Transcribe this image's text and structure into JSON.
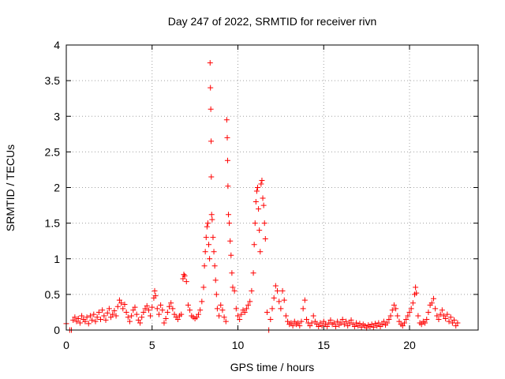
{
  "chart_data": {
    "type": "scatter",
    "title": "Day 247 of 2022, SRMTID for receiver rivn",
    "xlabel": "GPS time / hours",
    "ylabel": "SRMTID / TECUs",
    "xlim": [
      0,
      24
    ],
    "ylim": [
      0,
      4
    ],
    "xticks": [
      0,
      5,
      10,
      15,
      20
    ],
    "xtick_labels": [
      "0",
      "5",
      "10",
      "15",
      "20"
    ],
    "yticks": [
      0,
      0.5,
      1,
      1.5,
      2,
      2.5,
      3,
      3.5,
      4
    ],
    "ytick_labels": [
      "0",
      "0.5",
      "1",
      "1.5",
      "2",
      "2.5",
      "3",
      "3.5",
      "4"
    ],
    "grid": true,
    "marker": "+",
    "color": "#ff0000",
    "series": [
      {
        "name": "SRMTID",
        "points": [
          [
            0.0,
            0.09
          ],
          [
            0.2,
            0.0
          ],
          [
            0.3,
            0.0
          ],
          [
            0.4,
            0.14
          ],
          [
            0.5,
            0.18
          ],
          [
            0.6,
            0.12
          ],
          [
            0.7,
            0.16
          ],
          [
            0.8,
            0.1
          ],
          [
            0.9,
            0.2
          ],
          [
            1.0,
            0.15
          ],
          [
            1.1,
            0.12
          ],
          [
            1.2,
            0.18
          ],
          [
            1.3,
            0.09
          ],
          [
            1.4,
            0.2
          ],
          [
            1.5,
            0.14
          ],
          [
            1.6,
            0.22
          ],
          [
            1.7,
            0.12
          ],
          [
            1.8,
            0.18
          ],
          [
            1.9,
            0.25
          ],
          [
            2.0,
            0.15
          ],
          [
            2.1,
            0.28
          ],
          [
            2.2,
            0.2
          ],
          [
            2.3,
            0.14
          ],
          [
            2.4,
            0.24
          ],
          [
            2.5,
            0.3
          ],
          [
            2.6,
            0.18
          ],
          [
            2.7,
            0.22
          ],
          [
            2.8,
            0.27
          ],
          [
            2.9,
            0.2
          ],
          [
            3.0,
            0.33
          ],
          [
            3.1,
            0.42
          ],
          [
            3.2,
            0.38
          ],
          [
            3.3,
            0.3
          ],
          [
            3.4,
            0.36
          ],
          [
            3.5,
            0.25
          ],
          [
            3.6,
            0.18
          ],
          [
            3.7,
            0.12
          ],
          [
            3.8,
            0.2
          ],
          [
            3.9,
            0.28
          ],
          [
            4.0,
            0.32
          ],
          [
            4.1,
            0.22
          ],
          [
            4.2,
            0.14
          ],
          [
            4.3,
            0.1
          ],
          [
            4.4,
            0.18
          ],
          [
            4.5,
            0.25
          ],
          [
            4.6,
            0.3
          ],
          [
            4.7,
            0.34
          ],
          [
            4.8,
            0.28
          ],
          [
            4.9,
            0.2
          ],
          [
            5.0,
            0.32
          ],
          [
            5.1,
            0.45
          ],
          [
            5.15,
            0.55
          ],
          [
            5.2,
            0.48
          ],
          [
            5.3,
            0.3
          ],
          [
            5.4,
            0.22
          ],
          [
            5.5,
            0.35
          ],
          [
            5.6,
            0.28
          ],
          [
            5.7,
            0.1
          ],
          [
            5.8,
            0.16
          ],
          [
            5.9,
            0.25
          ],
          [
            6.0,
            0.33
          ],
          [
            6.1,
            0.38
          ],
          [
            6.2,
            0.3
          ],
          [
            6.3,
            0.22
          ],
          [
            6.4,
            0.18
          ],
          [
            6.5,
            0.15
          ],
          [
            6.6,
            0.2
          ],
          [
            6.7,
            0.22
          ],
          [
            6.8,
            0.72
          ],
          [
            6.85,
            0.78
          ],
          [
            6.9,
            0.76
          ],
          [
            7.0,
            0.68
          ],
          [
            7.1,
            0.35
          ],
          [
            7.2,
            0.28
          ],
          [
            7.3,
            0.2
          ],
          [
            7.4,
            0.18
          ],
          [
            7.5,
            0.16
          ],
          [
            7.6,
            0.18
          ],
          [
            7.7,
            0.22
          ],
          [
            7.8,
            0.28
          ],
          [
            7.9,
            0.4
          ],
          [
            8.0,
            0.6
          ],
          [
            8.05,
            0.9
          ],
          [
            8.1,
            1.1
          ],
          [
            8.15,
            1.3
          ],
          [
            8.2,
            1.45
          ],
          [
            8.25,
            1.5
          ],
          [
            8.3,
            1.2
          ],
          [
            8.35,
            1.0
          ],
          [
            8.38,
            3.75
          ],
          [
            8.4,
            3.4
          ],
          [
            8.42,
            3.1
          ],
          [
            8.44,
            2.65
          ],
          [
            8.45,
            2.15
          ],
          [
            8.47,
            1.62
          ],
          [
            8.5,
            1.55
          ],
          [
            8.55,
            1.3
          ],
          [
            8.6,
            1.1
          ],
          [
            8.65,
            0.9
          ],
          [
            8.7,
            0.7
          ],
          [
            8.75,
            0.5
          ],
          [
            8.8,
            0.3
          ],
          [
            8.9,
            0.2
          ],
          [
            9.0,
            0.35
          ],
          [
            9.1,
            0.28
          ],
          [
            9.2,
            0.18
          ],
          [
            9.3,
            0.12
          ],
          [
            9.35,
            2.95
          ],
          [
            9.38,
            2.7
          ],
          [
            9.4,
            2.38
          ],
          [
            9.42,
            2.02
          ],
          [
            9.45,
            1.62
          ],
          [
            9.5,
            1.5
          ],
          [
            9.55,
            1.25
          ],
          [
            9.6,
            1.05
          ],
          [
            9.65,
            0.8
          ],
          [
            9.7,
            0.6
          ],
          [
            9.8,
            0.55
          ],
          [
            9.9,
            0.3
          ],
          [
            10.0,
            0.2
          ],
          [
            10.1,
            0.15
          ],
          [
            10.2,
            0.22
          ],
          [
            10.3,
            0.28
          ],
          [
            10.4,
            0.25
          ],
          [
            10.5,
            0.3
          ],
          [
            10.6,
            0.35
          ],
          [
            10.7,
            0.4
          ],
          [
            10.8,
            0.55
          ],
          [
            10.9,
            0.8
          ],
          [
            10.95,
            1.2
          ],
          [
            11.0,
            1.5
          ],
          [
            11.05,
            1.8
          ],
          [
            11.1,
            1.95
          ],
          [
            11.15,
            2.0
          ],
          [
            11.2,
            1.7
          ],
          [
            11.25,
            1.4
          ],
          [
            11.3,
            1.1
          ],
          [
            11.35,
            2.05
          ],
          [
            11.4,
            2.1
          ],
          [
            11.45,
            1.85
          ],
          [
            11.5,
            1.75
          ],
          [
            11.55,
            1.5
          ],
          [
            11.6,
            1.28
          ],
          [
            11.7,
            0.25
          ],
          [
            11.8,
            0.0
          ],
          [
            11.9,
            0.15
          ],
          [
            12.0,
            0.3
          ],
          [
            12.1,
            0.45
          ],
          [
            12.2,
            0.62
          ],
          [
            12.3,
            0.55
          ],
          [
            12.4,
            0.4
          ],
          [
            12.5,
            0.3
          ],
          [
            12.6,
            0.55
          ],
          [
            12.7,
            0.42
          ],
          [
            12.8,
            0.2
          ],
          [
            12.9,
            0.12
          ],
          [
            13.0,
            0.08
          ],
          [
            13.1,
            0.1
          ],
          [
            13.2,
            0.06
          ],
          [
            13.3,
            0.12
          ],
          [
            13.4,
            0.08
          ],
          [
            13.5,
            0.1
          ],
          [
            13.6,
            0.06
          ],
          [
            13.7,
            0.12
          ],
          [
            13.8,
            0.3
          ],
          [
            13.9,
            0.42
          ],
          [
            14.0,
            0.15
          ],
          [
            14.1,
            0.1
          ],
          [
            14.2,
            0.06
          ],
          [
            14.3,
            0.1
          ],
          [
            14.4,
            0.2
          ],
          [
            14.5,
            0.12
          ],
          [
            14.6,
            0.08
          ],
          [
            14.7,
            0.05
          ],
          [
            14.8,
            0.1
          ],
          [
            14.9,
            0.06
          ],
          [
            15.0,
            0.12
          ],
          [
            15.1,
            0.08
          ],
          [
            15.2,
            0.05
          ],
          [
            15.3,
            0.1
          ],
          [
            15.4,
            0.14
          ],
          [
            15.5,
            0.08
          ],
          [
            15.6,
            0.1
          ],
          [
            15.7,
            0.05
          ],
          [
            15.8,
            0.12
          ],
          [
            15.9,
            0.07
          ],
          [
            16.0,
            0.1
          ],
          [
            16.1,
            0.15
          ],
          [
            16.2,
            0.08
          ],
          [
            16.3,
            0.12
          ],
          [
            16.4,
            0.06
          ],
          [
            16.5,
            0.1
          ],
          [
            16.6,
            0.14
          ],
          [
            16.7,
            0.08
          ],
          [
            16.8,
            0.05
          ],
          [
            16.9,
            0.1
          ],
          [
            17.0,
            0.06
          ],
          [
            17.1,
            0.09
          ],
          [
            17.2,
            0.04
          ],
          [
            17.3,
            0.08
          ],
          [
            17.4,
            0.06
          ],
          [
            17.5,
            0.03
          ],
          [
            17.6,
            0.07
          ],
          [
            17.7,
            0.05
          ],
          [
            17.8,
            0.08
          ],
          [
            17.9,
            0.04
          ],
          [
            18.0,
            0.09
          ],
          [
            18.1,
            0.06
          ],
          [
            18.2,
            0.1
          ],
          [
            18.3,
            0.05
          ],
          [
            18.4,
            0.08
          ],
          [
            18.5,
            0.12
          ],
          [
            18.6,
            0.07
          ],
          [
            18.7,
            0.1
          ],
          [
            18.8,
            0.15
          ],
          [
            18.9,
            0.2
          ],
          [
            19.0,
            0.28
          ],
          [
            19.1,
            0.35
          ],
          [
            19.2,
            0.3
          ],
          [
            19.3,
            0.2
          ],
          [
            19.4,
            0.12
          ],
          [
            19.5,
            0.08
          ],
          [
            19.6,
            0.06
          ],
          [
            19.7,
            0.1
          ],
          [
            19.8,
            0.15
          ],
          [
            19.9,
            0.2
          ],
          [
            20.0,
            0.25
          ],
          [
            20.1,
            0.3
          ],
          [
            20.2,
            0.38
          ],
          [
            20.3,
            0.5
          ],
          [
            20.35,
            0.6
          ],
          [
            20.4,
            0.52
          ],
          [
            20.5,
            0.2
          ],
          [
            20.6,
            0.1
          ],
          [
            20.7,
            0.08
          ],
          [
            20.8,
            0.12
          ],
          [
            20.9,
            0.1
          ],
          [
            21.0,
            0.15
          ],
          [
            21.1,
            0.25
          ],
          [
            21.2,
            0.35
          ],
          [
            21.3,
            0.38
          ],
          [
            21.4,
            0.44
          ],
          [
            21.5,
            0.3
          ],
          [
            21.6,
            0.2
          ],
          [
            21.7,
            0.15
          ],
          [
            21.8,
            0.22
          ],
          [
            21.9,
            0.28
          ],
          [
            22.0,
            0.2
          ],
          [
            22.1,
            0.16
          ],
          [
            22.2,
            0.22
          ],
          [
            22.3,
            0.12
          ],
          [
            22.4,
            0.18
          ],
          [
            22.5,
            0.1
          ],
          [
            22.6,
            0.14
          ],
          [
            22.7,
            0.06
          ],
          [
            22.8,
            0.1
          ]
        ]
      }
    ]
  }
}
